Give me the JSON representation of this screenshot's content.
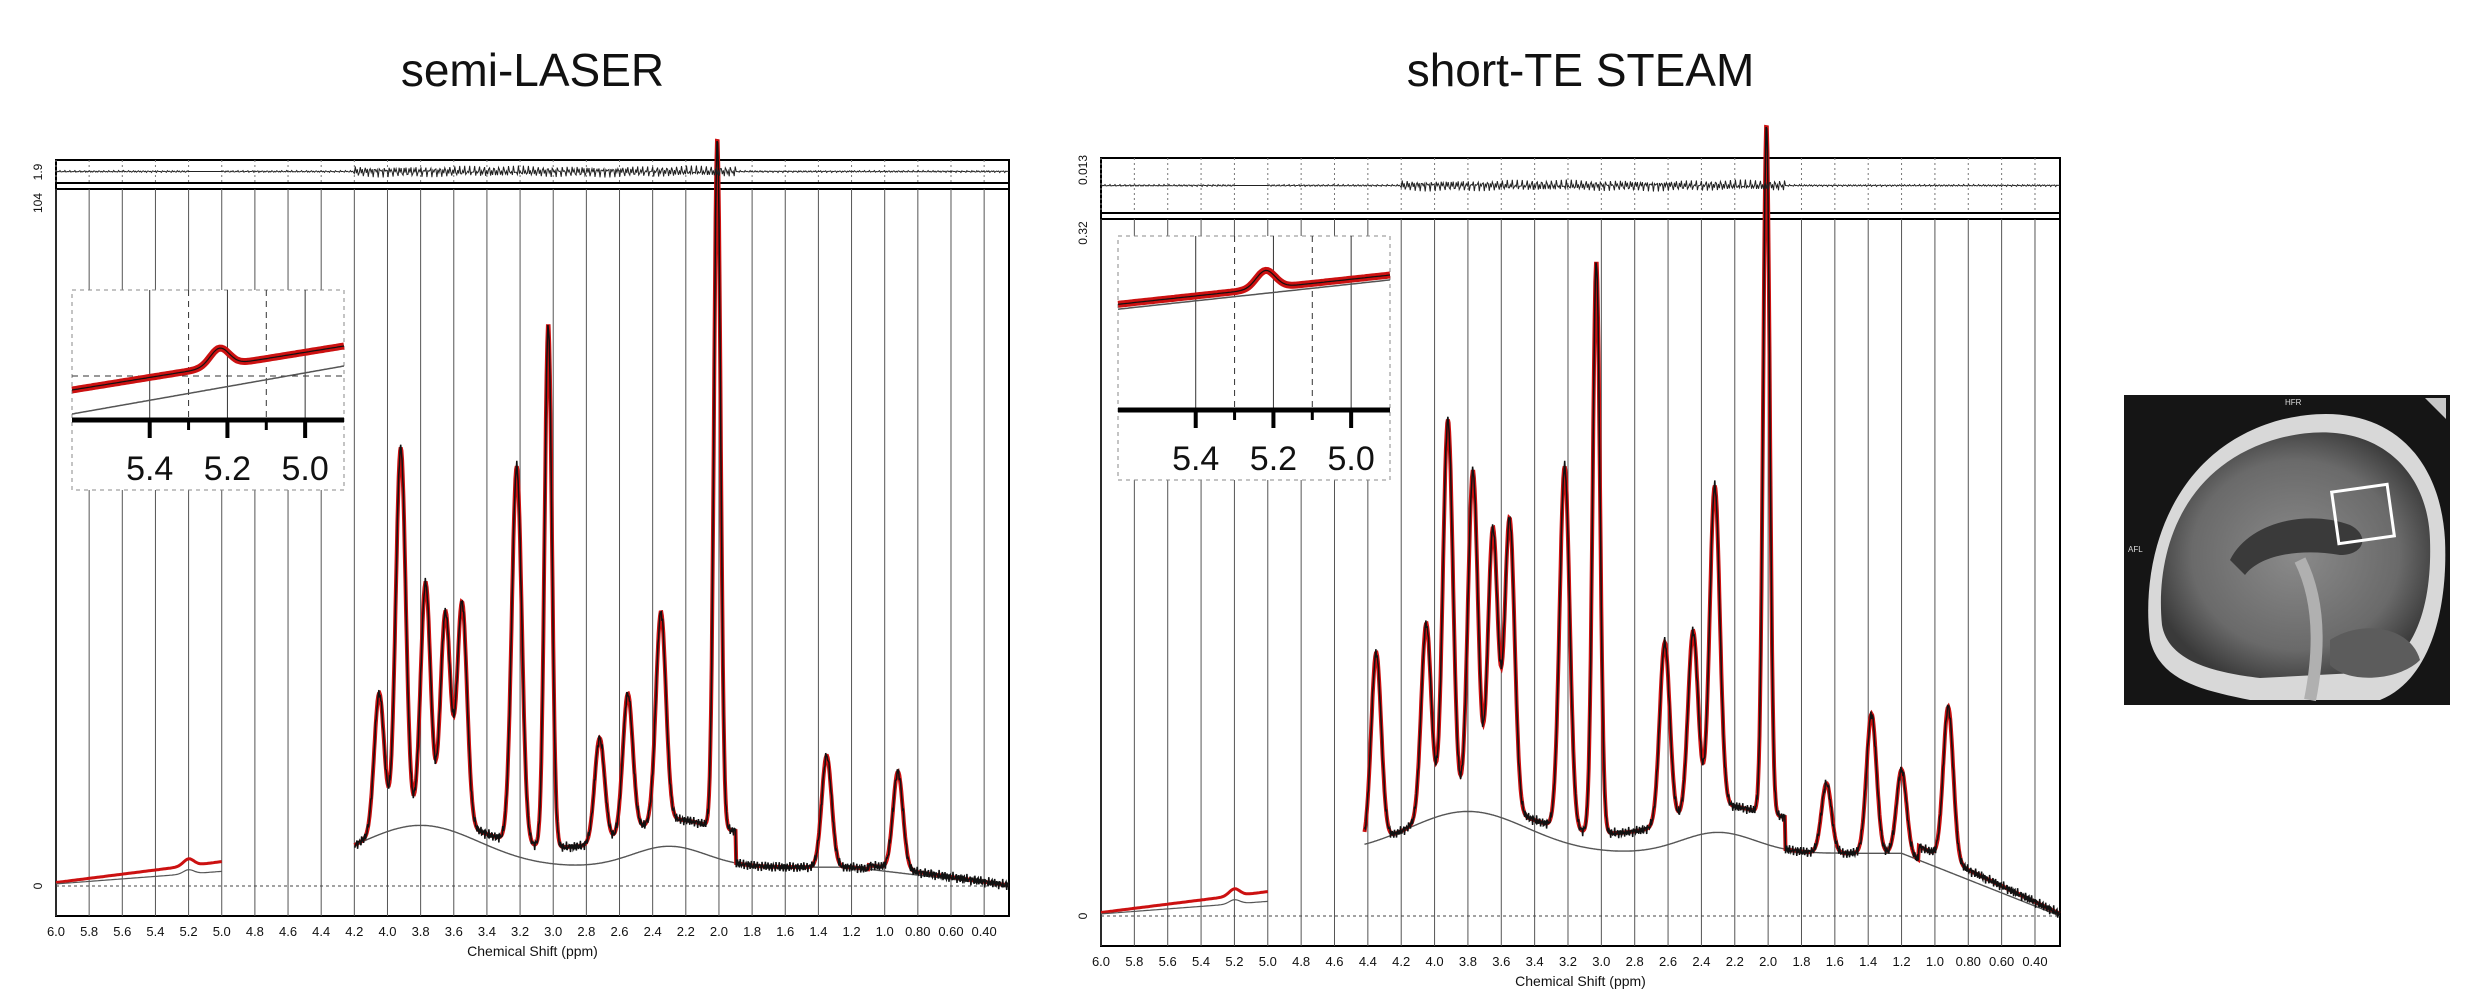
{
  "chart_data": [
    {
      "type": "line",
      "title": "semi-LASER",
      "xlabel": "Chemical Shift (ppm)",
      "x_ticks": [
        "6.0",
        "5.8",
        "5.6",
        "5.4",
        "5.2",
        "5.0",
        "4.8",
        "4.6",
        "4.4",
        "4.2",
        "4.0",
        "3.8",
        "3.6",
        "3.4",
        "3.2",
        "3.0",
        "2.8",
        "2.6",
        "2.4",
        "2.2",
        "2.0",
        "1.8",
        "1.6",
        "1.4",
        "1.2",
        "1.0",
        "0.80",
        "0.60",
        "0.40"
      ],
      "xlim": [
        6.0,
        0.25
      ],
      "x_reversed": true,
      "residual_ytick": "1.9",
      "ylim": [
        0,
        104
      ],
      "yticks": [
        "0",
        "104"
      ],
      "grid": true,
      "peaks": [
        {
          "ppm": 4.05,
          "height": 0.2
        },
        {
          "ppm": 3.92,
          "height": 0.54
        },
        {
          "ppm": 3.77,
          "height": 0.34
        },
        {
          "ppm": 3.65,
          "height": 0.3
        },
        {
          "ppm": 3.55,
          "height": 0.32
        },
        {
          "ppm": 3.22,
          "height": 0.54
        },
        {
          "ppm": 3.03,
          "height": 0.75
        },
        {
          "ppm": 2.72,
          "height": 0.15
        },
        {
          "ppm": 2.55,
          "height": 0.2
        },
        {
          "ppm": 2.35,
          "height": 0.3
        },
        {
          "ppm": 2.01,
          "height": 0.99
        },
        {
          "ppm": 1.35,
          "height": 0.16
        },
        {
          "ppm": 0.92,
          "height": 0.14
        }
      ],
      "series": [
        {
          "name": "",
          "role": "data",
          "color": "#111111"
        },
        {
          "name": "",
          "role": "fit",
          "color": "#cc1111"
        },
        {
          "name": "",
          "role": "baseline",
          "color": "#555555"
        }
      ],
      "inset": {
        "x_ticks": [
          "5.4",
          "5.2",
          "5.0"
        ],
        "xlim": [
          5.6,
          4.9
        ]
      }
    },
    {
      "type": "line",
      "title": "short-TE STEAM",
      "xlabel": "Chemical Shift (ppm)",
      "x_ticks": [
        "6.0",
        "5.8",
        "5.6",
        "5.4",
        "5.2",
        "5.0",
        "4.8",
        "4.6",
        "4.4",
        "4.2",
        "4.0",
        "3.8",
        "3.6",
        "3.4",
        "3.2",
        "3.0",
        "2.8",
        "2.6",
        "2.4",
        "2.2",
        "2.0",
        "1.8",
        "1.6",
        "1.4",
        "1.2",
        "1.0",
        "0.80",
        "0.60",
        "0.40"
      ],
      "xlim": [
        6.0,
        0.25
      ],
      "x_reversed": true,
      "residual_ytick": "0.013",
      "ylim": [
        0,
        0.32
      ],
      "yticks": [
        "0",
        "0.32"
      ],
      "grid": true,
      "peaks": [
        {
          "ppm": 4.35,
          "height": 0.27
        },
        {
          "ppm": 4.05,
          "height": 0.28
        },
        {
          "ppm": 3.92,
          "height": 0.56
        },
        {
          "ppm": 3.77,
          "height": 0.48
        },
        {
          "ppm": 3.65,
          "height": 0.4
        },
        {
          "ppm": 3.55,
          "height": 0.42
        },
        {
          "ppm": 3.22,
          "height": 0.52
        },
        {
          "ppm": 3.03,
          "height": 0.82
        },
        {
          "ppm": 2.62,
          "height": 0.26
        },
        {
          "ppm": 2.45,
          "height": 0.26
        },
        {
          "ppm": 2.32,
          "height": 0.46
        },
        {
          "ppm": 2.01,
          "height": 0.99
        },
        {
          "ppm": 1.65,
          "height": 0.1
        },
        {
          "ppm": 1.38,
          "height": 0.2
        },
        {
          "ppm": 1.2,
          "height": 0.12
        },
        {
          "ppm": 0.92,
          "height": 0.22
        }
      ],
      "series": [
        {
          "name": "",
          "role": "data",
          "color": "#111111"
        },
        {
          "name": "",
          "role": "fit",
          "color": "#cc1111"
        },
        {
          "name": "",
          "role": "baseline",
          "color": "#555555"
        }
      ],
      "inset": {
        "x_ticks": [
          "5.4",
          "5.2",
          "5.0"
        ],
        "xlim": [
          5.6,
          4.9
        ]
      }
    }
  ],
  "mri": {
    "top_label": "HFR",
    "left_label": "AFL"
  }
}
